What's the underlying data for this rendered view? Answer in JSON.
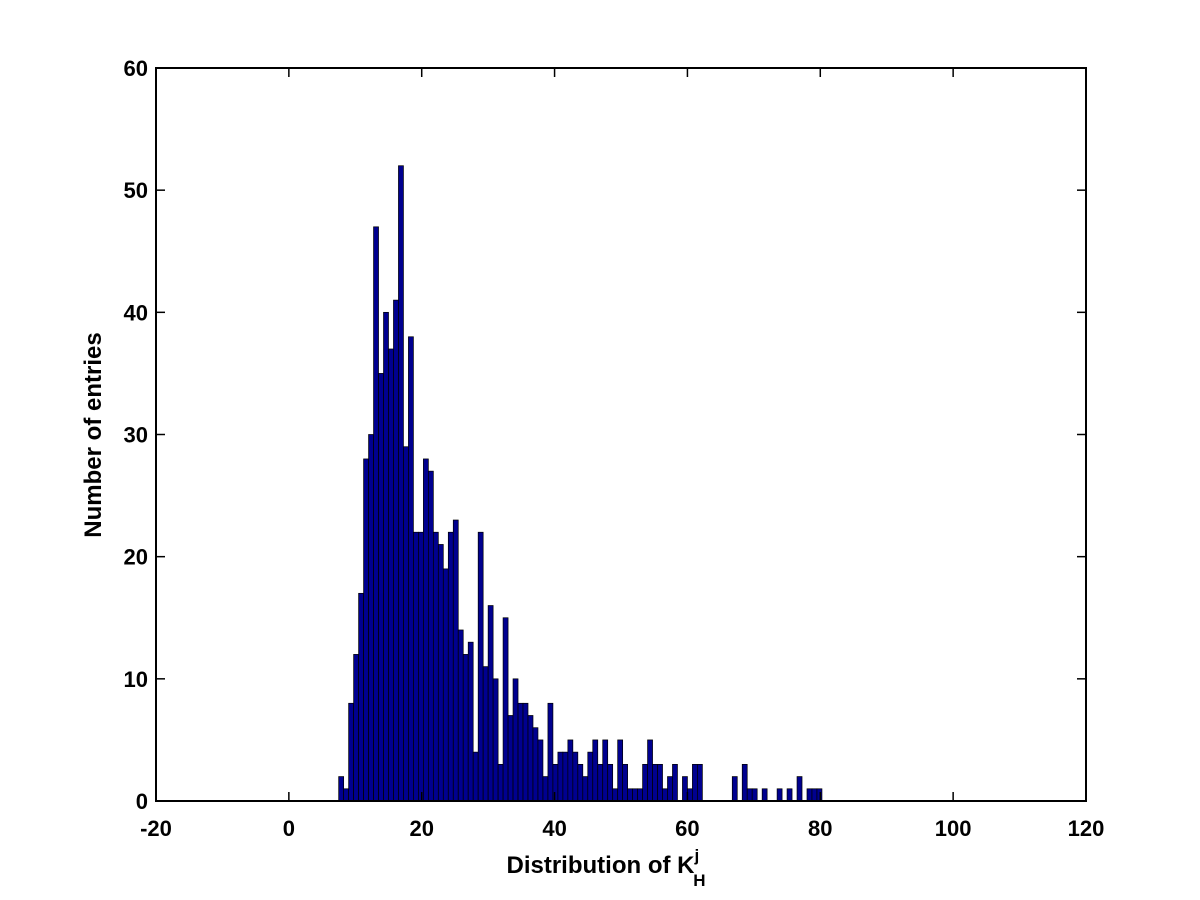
{
  "chart_data": {
    "type": "bar",
    "subtype": "histogram",
    "title": "",
    "xlabel": {
      "prefix": "Distribution of K",
      "superscript": "j",
      "subscript": "H"
    },
    "ylabel": "Number of entries",
    "xlim": [
      -20,
      120
    ],
    "ylim": [
      0,
      60
    ],
    "xticks": [
      -20,
      0,
      20,
      40,
      60,
      80,
      100,
      120
    ],
    "yticks": [
      0,
      10,
      20,
      30,
      40,
      50,
      60
    ],
    "grid": false,
    "bar_color": "#00008f",
    "bar_edge_color": "#000000",
    "bin_start": 7.5,
    "bin_width": 0.75,
    "values": [
      2,
      1,
      8,
      12,
      17,
      28,
      30,
      47,
      35,
      40,
      37,
      41,
      52,
      29,
      38,
      22,
      22,
      28,
      27,
      22,
      21,
      19,
      22,
      23,
      14,
      12,
      13,
      4,
      22,
      11,
      16,
      10,
      3,
      15,
      7,
      10,
      8,
      8,
      7,
      6,
      5,
      2,
      8,
      3,
      4,
      4,
      5,
      4,
      3,
      2,
      4,
      5,
      3,
      5,
      3,
      1,
      5,
      3,
      1,
      1,
      1,
      3,
      5,
      3,
      3,
      1,
      2,
      3,
      0,
      2,
      1,
      3,
      3,
      0,
      0,
      0,
      0,
      0,
      0,
      2,
      0,
      3,
      1,
      1,
      0,
      1,
      0,
      0,
      1,
      0,
      1,
      0,
      2,
      0,
      1,
      1,
      1
    ]
  }
}
